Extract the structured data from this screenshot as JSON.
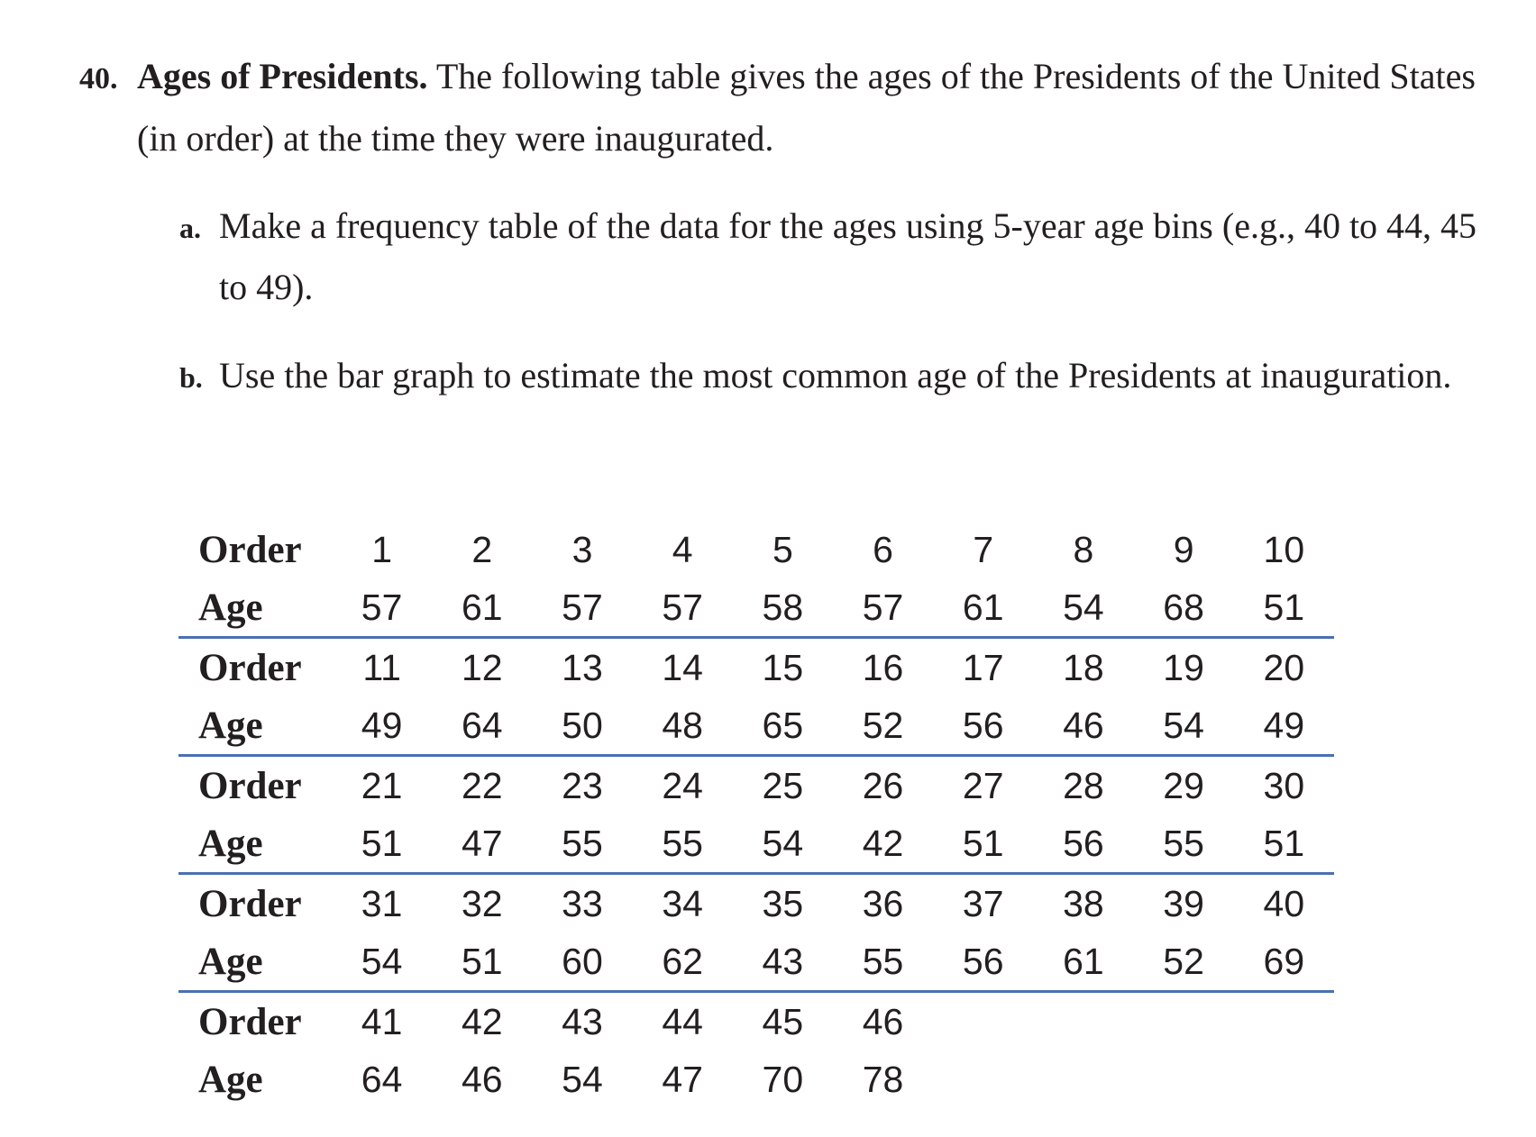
{
  "problem": {
    "number": "40.",
    "title": "Ages of Presidents.",
    "text": "The following table gives the ages of the Presidents of the United States (in order) at the time they were inaugurated."
  },
  "parts": [
    {
      "letter": "a.",
      "text": "Make a frequency table of the data for the ages using 5-year age bins (e.g., 40 to 44, 45 to 49)."
    },
    {
      "letter": "b.",
      "text": "Use the bar graph to estimate the most common age of the Presidents at inauguration."
    }
  ],
  "table": {
    "order_label": "Order",
    "age_label": "Age",
    "groups": [
      {
        "order": [
          "1",
          "2",
          "3",
          "4",
          "5",
          "6",
          "7",
          "8",
          "9",
          "10"
        ],
        "age": [
          "57",
          "61",
          "57",
          "57",
          "58",
          "57",
          "61",
          "54",
          "68",
          "51"
        ]
      },
      {
        "order": [
          "11",
          "12",
          "13",
          "14",
          "15",
          "16",
          "17",
          "18",
          "19",
          "20"
        ],
        "age": [
          "49",
          "64",
          "50",
          "48",
          "65",
          "52",
          "56",
          "46",
          "54",
          "49"
        ]
      },
      {
        "order": [
          "21",
          "22",
          "23",
          "24",
          "25",
          "26",
          "27",
          "28",
          "29",
          "30"
        ],
        "age": [
          "51",
          "47",
          "55",
          "55",
          "54",
          "42",
          "51",
          "56",
          "55",
          "51"
        ]
      },
      {
        "order": [
          "31",
          "32",
          "33",
          "34",
          "35",
          "36",
          "37",
          "38",
          "39",
          "40"
        ],
        "age": [
          "54",
          "51",
          "60",
          "62",
          "43",
          "55",
          "56",
          "61",
          "52",
          "69"
        ]
      },
      {
        "order": [
          "41",
          "42",
          "43",
          "44",
          "45",
          "46"
        ],
        "age": [
          "64",
          "46",
          "54",
          "47",
          "70",
          "78"
        ]
      }
    ]
  }
}
